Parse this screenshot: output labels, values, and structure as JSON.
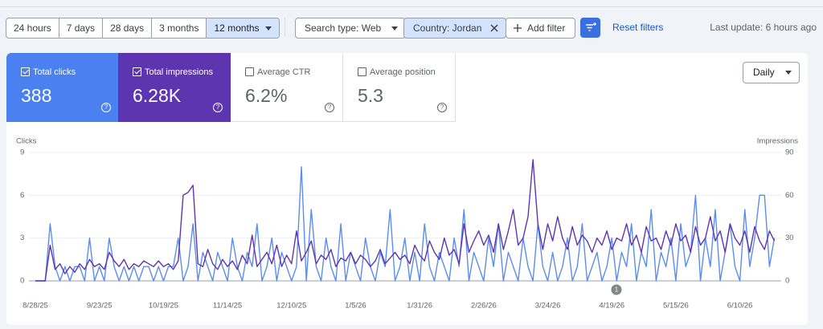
{
  "toolbar": {
    "date_ranges": [
      "24 hours",
      "7 days",
      "28 days",
      "3 months",
      "12 months"
    ],
    "search_type": "Search type: Web",
    "country": "Country: Jordan",
    "add_filter": "Add filter",
    "reset": "Reset filters",
    "last_update": "Last update: 6 hours ago"
  },
  "metrics": [
    {
      "label": "Total clicks",
      "value": "388"
    },
    {
      "label": "Total impressions",
      "value": "6.28K"
    },
    {
      "label": "Average CTR",
      "value": "6.2%"
    },
    {
      "label": "Average position",
      "value": "5.3"
    }
  ],
  "granularity": "Daily",
  "chart_data": {
    "type": "line",
    "ylabel": "Clicks",
    "y2label": "Impressions",
    "categories": [
      "8/28/25",
      null,
      null,
      null,
      null,
      null,
      null,
      null,
      null,
      null,
      null,
      null,
      null,
      "9/23/25",
      null,
      null,
      null,
      null,
      null,
      null,
      null,
      null,
      null,
      null,
      null,
      null,
      "10/19/25",
      null,
      null,
      null,
      null,
      null,
      null,
      null,
      null,
      null,
      null,
      null,
      null,
      "11/14/25",
      null,
      null,
      null,
      null,
      null,
      null,
      null,
      null,
      null,
      null,
      null,
      null,
      "12/10/25",
      null,
      null,
      null,
      null,
      null,
      null,
      null,
      null,
      null,
      null,
      null,
      null,
      "1/5/26",
      null,
      null,
      null,
      null,
      null,
      null,
      null,
      null,
      null,
      null,
      null,
      null,
      "1/31/26",
      null,
      null,
      null,
      null,
      null,
      null,
      null,
      null,
      null,
      null,
      null,
      null,
      "2/26/26",
      null,
      null,
      null,
      null,
      null,
      null,
      null,
      null,
      null,
      null,
      null,
      null,
      "3/24/26",
      null,
      null,
      null,
      null,
      null,
      null,
      null,
      null,
      null,
      null,
      null,
      null,
      "4/19/26",
      null,
      null,
      null,
      null,
      null,
      null,
      null,
      null,
      null,
      null,
      null,
      null,
      "5/15/26",
      null,
      null,
      null,
      null,
      null,
      null,
      null,
      null,
      null,
      null,
      null,
      null,
      "6/10/26",
      null,
      null,
      null,
      null,
      null,
      null,
      null
    ],
    "series": [
      {
        "color": "#5b8def",
        "axis": "y",
        "values": [
          0,
          0,
          0,
          4,
          1,
          0,
          1,
          0,
          1,
          1,
          0,
          3,
          0,
          1,
          0,
          3,
          1,
          0,
          1,
          0,
          1,
          0,
          1,
          1,
          0,
          1,
          0,
          1,
          1,
          3,
          0,
          1,
          4,
          0,
          2,
          1,
          0,
          2,
          1,
          0,
          3,
          1,
          0,
          2,
          1,
          4,
          0,
          1,
          3,
          0,
          2,
          1,
          0,
          1,
          8,
          0,
          5,
          1,
          0,
          3,
          1,
          0,
          4,
          0,
          2,
          1,
          0,
          3,
          1,
          0,
          2,
          1,
          5,
          0,
          1,
          3,
          0,
          2,
          0,
          4,
          1,
          0,
          2,
          1,
          0,
          3,
          1,
          5,
          0,
          2,
          1,
          0,
          3,
          1,
          4,
          0,
          2,
          1,
          0,
          3,
          1,
          0,
          4,
          1,
          0,
          2,
          0,
          1,
          3,
          0,
          1,
          4,
          0,
          1,
          2,
          0,
          1,
          3,
          0,
          2,
          1,
          4,
          0,
          2,
          1,
          5,
          0,
          2,
          1,
          3,
          0,
          4,
          1,
          2,
          6,
          0,
          3,
          1,
          5,
          0,
          2,
          4,
          1,
          0,
          5,
          1,
          3,
          6,
          6,
          1,
          3
        ]
      },
      {
        "color": "#5e35b1",
        "axis": "y2",
        "values": [
          0,
          0,
          0,
          25,
          8,
          12,
          5,
          10,
          6,
          12,
          8,
          15,
          10,
          12,
          8,
          20,
          14,
          10,
          15,
          8,
          12,
          10,
          14,
          12,
          10,
          14,
          10,
          12,
          8,
          14,
          60,
          62,
          67,
          12,
          10,
          22,
          12,
          8,
          15,
          10,
          14,
          8,
          18,
          12,
          32,
          10,
          15,
          20,
          12,
          25,
          10,
          18,
          12,
          35,
          14,
          20,
          28,
          12,
          18,
          15,
          22,
          10,
          16,
          14,
          20,
          12,
          18,
          15,
          10,
          14,
          22,
          12,
          16,
          20,
          15,
          18,
          12,
          25,
          18,
          14,
          28,
          20,
          15,
          30,
          18,
          22,
          12,
          40,
          20,
          28,
          35,
          25,
          32,
          20,
          40,
          22,
          35,
          50,
          25,
          30,
          45,
          85,
          40,
          22,
          40,
          28,
          45,
          30,
          22,
          38,
          25,
          32,
          28,
          20,
          30,
          25,
          35,
          22,
          30,
          28,
          40,
          25,
          32,
          20,
          38,
          28,
          30,
          22,
          35,
          25,
          40,
          28,
          32,
          20,
          38,
          25,
          30,
          45,
          28,
          35,
          20,
          40,
          30,
          25,
          35,
          20,
          38,
          28,
          22,
          35,
          28
        ]
      }
    ],
    "ylim": [
      0,
      9
    ],
    "yticks": [
      0,
      3,
      6,
      9
    ],
    "y2lim": [
      0,
      90
    ],
    "y2ticks": [
      0,
      30,
      60,
      90
    ],
    "grid": true,
    "annotations": [
      {
        "text": "1"
      }
    ]
  }
}
